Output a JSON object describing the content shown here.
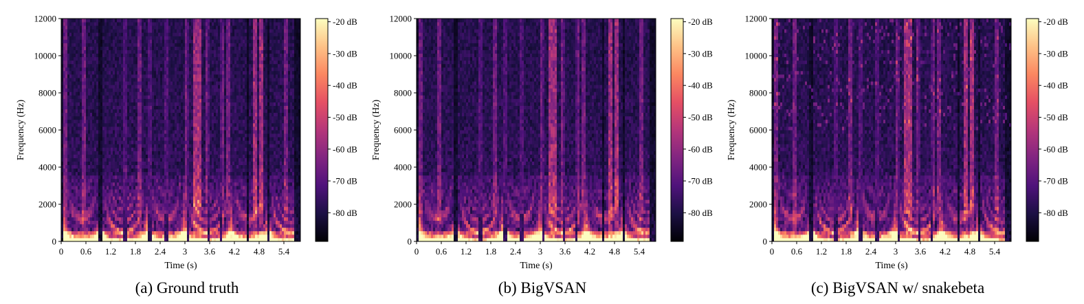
{
  "palette": {
    "colormap": "magma",
    "stops": [
      "#000004",
      "#1c1044",
      "#4f127b",
      "#812581",
      "#b5367a",
      "#e55064",
      "#fb8761",
      "#fec287",
      "#fcfdbf"
    ],
    "background": "#ffffff",
    "axis": "#000000"
  },
  "chart_data": [
    {
      "type": "heatmap",
      "caption": "(a) Ground truth",
      "xlabel": "Time (s)",
      "ylabel": "Frequency (Hz)",
      "xlim": [
        0,
        5.8
      ],
      "ylim": [
        0,
        12000
      ],
      "xticks": [
        "0",
        "0.6",
        "1.2",
        "1.8",
        "2.4",
        "3",
        "3.6",
        "4.2",
        "4.8",
        "5.4"
      ],
      "yticks": [
        "0",
        "2000",
        "4000",
        "6000",
        "8000",
        "10000",
        "12000"
      ],
      "colorbar": {
        "ticks": [
          "-20 dB",
          "-30 dB",
          "-40 dB",
          "-50 dB",
          "-60 dB",
          "-70 dB",
          "-80 dB"
        ],
        "range_db": [
          -89,
          -19
        ]
      }
    },
    {
      "type": "heatmap",
      "caption": "(b) BigVSAN",
      "xlabel": "Time (s)",
      "ylabel": "Frequency (Hz)",
      "xlim": [
        0,
        5.8
      ],
      "ylim": [
        0,
        12000
      ],
      "xticks": [
        "0",
        "0.6",
        "1.2",
        "1.8",
        "2.4",
        "3",
        "3.6",
        "4.2",
        "4.8",
        "5.4"
      ],
      "yticks": [
        "0",
        "2000",
        "4000",
        "6000",
        "8000",
        "10000",
        "12000"
      ],
      "colorbar": {
        "ticks": [
          "-20 dB",
          "-30 dB",
          "-40 dB",
          "-50 dB",
          "-60 dB",
          "-70 dB",
          "-80 dB"
        ],
        "range_db": [
          -89,
          -19
        ]
      }
    },
    {
      "type": "heatmap",
      "caption": "(c) BigVSAN w/ snakebeta",
      "xlabel": "Time (s)",
      "ylabel": "Frequency (Hz)",
      "xlim": [
        0,
        5.8
      ],
      "ylim": [
        0,
        12000
      ],
      "xticks": [
        "0",
        "0.6",
        "1.2",
        "1.8",
        "2.4",
        "3",
        "3.6",
        "4.2",
        "4.8",
        "5.4"
      ],
      "yticks": [
        "0",
        "2000",
        "4000",
        "6000",
        "8000",
        "10000",
        "12000"
      ],
      "colorbar": {
        "ticks": [
          "-20 dB",
          "-30 dB",
          "-40 dB",
          "-50 dB",
          "-60 dB",
          "-70 dB",
          "-80 dB"
        ],
        "range_db": [
          -89,
          -19
        ]
      }
    }
  ]
}
